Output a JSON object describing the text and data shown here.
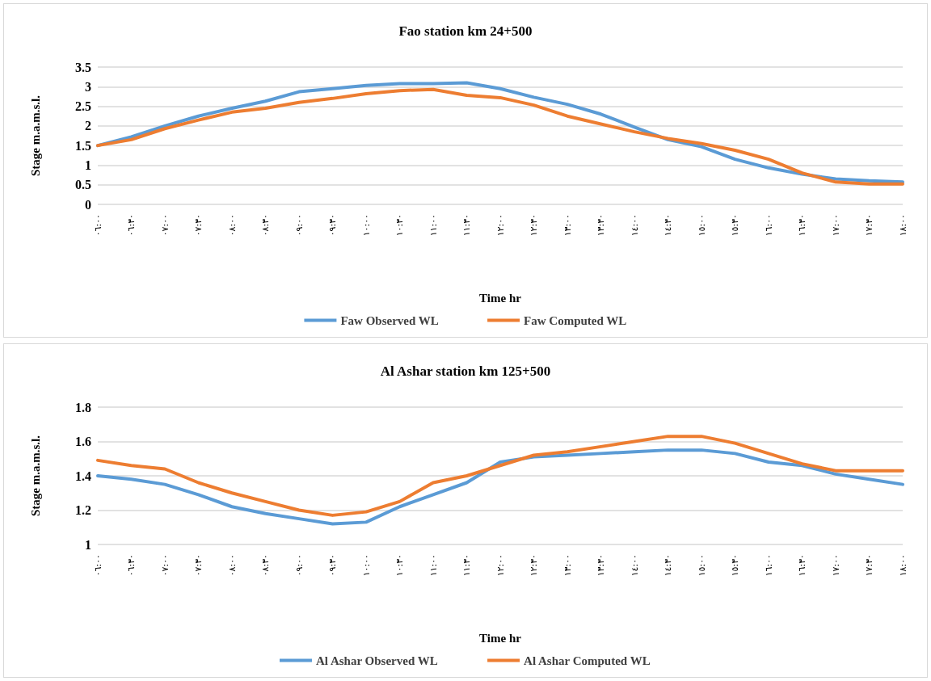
{
  "chart_data": [
    {
      "type": "line",
      "title": "Fao station km 24+500",
      "xlabel": "Time hr",
      "ylabel": "Stage m.a.m.s.l.",
      "categories": [
        "٠٦:٠٠",
        "٠٦:٣٠",
        "٠٧:٠٠",
        "٠٧:٣٠",
        "٠٨:٠٠",
        "٠٨:٣٠",
        "٠٩:٠٠",
        "٠٩:٣٠",
        "١٠:٠٠",
        "١٠:٣٠",
        "١١:٠٠",
        "١١:٣٠",
        "١٢:٠٠",
        "١٢:٣٠",
        "١٣:٠٠",
        "١٣:٣٠",
        "١٤:٠٠",
        "١٤:٣٠",
        "١٥:٠٠",
        "١٥:٣٠",
        "١٦:٠٠",
        "١٦:٣٠",
        "١٧:٠٠",
        "١٧:٣٠",
        "١٨:٠٠"
      ],
      "series": [
        {
          "name": "Faw Observed WL",
          "color": "#5b9bd5",
          "values": [
            1.5,
            1.72,
            2.0,
            2.25,
            2.45,
            2.63,
            2.87,
            2.95,
            3.03,
            3.08,
            3.08,
            3.1,
            2.95,
            2.73,
            2.55,
            2.3,
            1.97,
            1.65,
            1.47,
            1.15,
            0.93,
            0.77,
            0.65,
            0.6,
            0.57
          ]
        },
        {
          "name": "Faw Computed WL",
          "color": "#ed7d31",
          "values": [
            1.5,
            1.65,
            1.93,
            2.15,
            2.35,
            2.45,
            2.6,
            2.7,
            2.82,
            2.9,
            2.93,
            2.78,
            2.72,
            2.53,
            2.25,
            2.05,
            1.85,
            1.68,
            1.55,
            1.38,
            1.15,
            0.8,
            0.57,
            0.52,
            0.52
          ]
        }
      ],
      "ylim": [
        0,
        3.5
      ],
      "yticks": [
        0,
        0.5,
        1,
        1.5,
        2,
        2.5,
        3,
        3.5
      ],
      "grid": "y",
      "legend": "bottom",
      "marker": "none",
      "line_style": "solid"
    },
    {
      "type": "line",
      "title": "Al Ashar station km 125+500",
      "xlabel": "Time hr",
      "ylabel": "Stage m.a.m.s.l.",
      "categories": [
        "٠٦:٠٠",
        "٠٦:٣٠",
        "٠٧:٠٠",
        "٠٧:٣٠",
        "٠٨:٠٠",
        "٠٨:٣٠",
        "٠٩:٠٠",
        "٠٩:٣٠",
        "١٠:٠٠",
        "١٠:٣٠",
        "١١:٠٠",
        "١١:٣٠",
        "١٢:٠٠",
        "١٢:٣٠",
        "١٣:٠٠",
        "١٣:٣٠",
        "١٤:٠٠",
        "١٤:٣٠",
        "١٥:٠٠",
        "١٥:٣٠",
        "١٦:٠٠",
        "١٦:٣٠",
        "١٧:٠٠",
        "١٧:٣٠",
        "١٨:٠٠"
      ],
      "series": [
        {
          "name": "Al Ashar Observed WL",
          "color": "#5b9bd5",
          "values": [
            1.4,
            1.38,
            1.35,
            1.29,
            1.22,
            1.18,
            1.15,
            1.12,
            1.13,
            1.22,
            1.29,
            1.36,
            1.48,
            1.51,
            1.52,
            1.53,
            1.54,
            1.55,
            1.55,
            1.53,
            1.48,
            1.46,
            1.41,
            1.38,
            1.35
          ]
        },
        {
          "name": "Al Ashar Computed WL",
          "color": "#ed7d31",
          "values": [
            1.49,
            1.46,
            1.44,
            1.36,
            1.3,
            1.25,
            1.2,
            1.17,
            1.19,
            1.25,
            1.36,
            1.4,
            1.46,
            1.52,
            1.54,
            1.57,
            1.6,
            1.63,
            1.63,
            1.59,
            1.53,
            1.47,
            1.43,
            1.43,
            1.43
          ]
        }
      ],
      "ylim": [
        1,
        1.8
      ],
      "yticks": [
        1,
        1.2,
        1.4,
        1.6,
        1.8
      ],
      "grid": "y",
      "legend": "bottom",
      "marker": "none",
      "line_style": "solid"
    }
  ]
}
